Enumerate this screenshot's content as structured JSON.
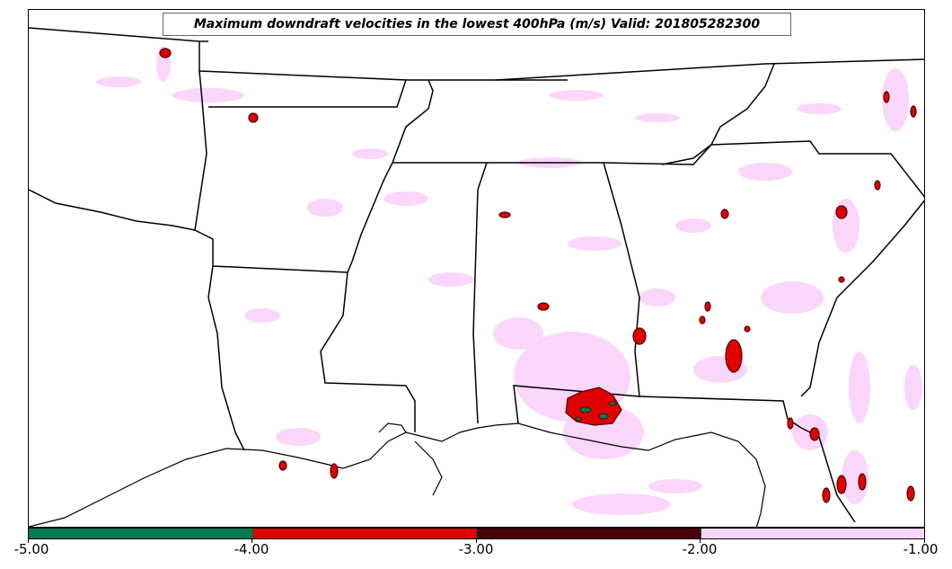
{
  "title": "Maximum downdraft velocities in the lowest 400hPa (m/s) Valid: 201805282300",
  "colorbar": {
    "ticks": [
      "-5.00",
      "-4.00",
      "-3.00",
      "-2.00",
      "-1.00"
    ],
    "colors": [
      "#007a50",
      "#e00000",
      "#4a0008",
      "#fbd6fb"
    ]
  },
  "map": {
    "background": "#ffffff",
    "boundary_color": "#000000",
    "field_colors": {
      "light": "#fbd6fb",
      "moderate": "#8b0000",
      "strong": "#e00000",
      "extreme": "#007a50"
    }
  }
}
